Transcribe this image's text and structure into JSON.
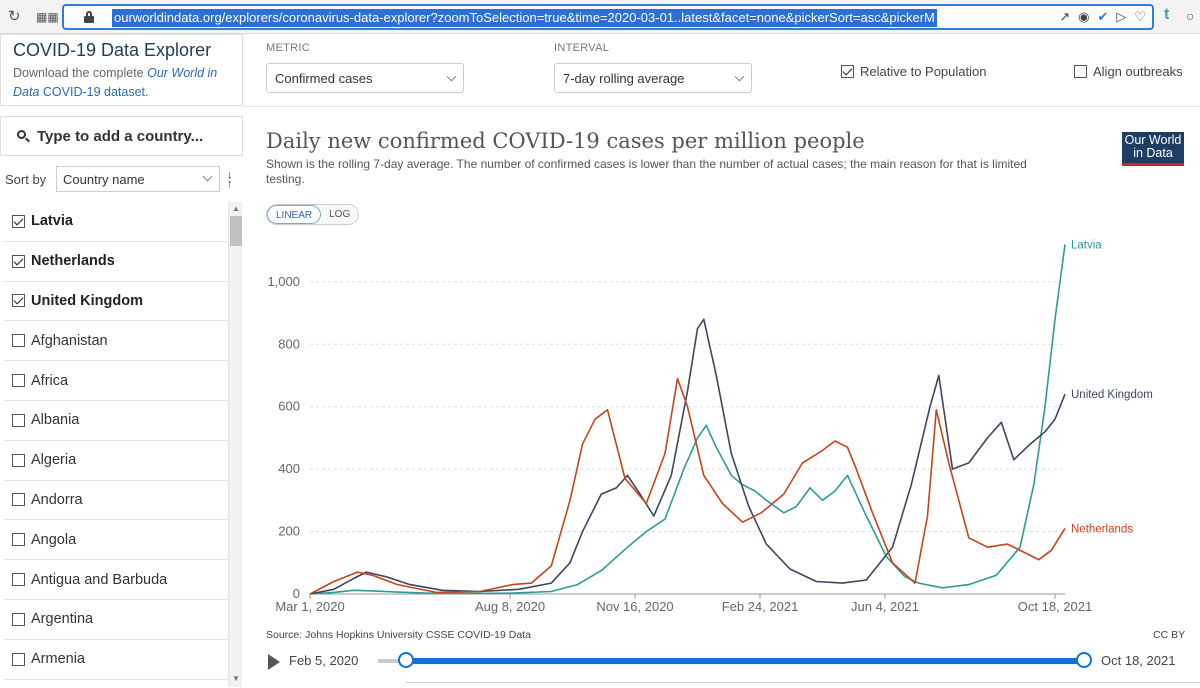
{
  "browser": {
    "url": "ourworldindata.org/explorers/coronavirus-data-explorer?zoomToSelection=true&time=2020-03-01..latest&facet=none&pickerSort=asc&pickerM"
  },
  "sidebar": {
    "title": "COVID-19 Data Explorer",
    "desc_prefix": "Download the complete ",
    "desc_italic": "Our World in Data",
    "desc_link": "COVID-19 dataset.",
    "search_placeholder": "Type to add a country...",
    "sort_label": "Sort by",
    "sort_value": "Country name",
    "countries": [
      {
        "name": "Latvia",
        "checked": true
      },
      {
        "name": "Netherlands",
        "checked": true
      },
      {
        "name": "United Kingdom",
        "checked": true
      },
      {
        "name": "Afghanistan",
        "checked": false
      },
      {
        "name": "Africa",
        "checked": false
      },
      {
        "name": "Albania",
        "checked": false
      },
      {
        "name": "Algeria",
        "checked": false
      },
      {
        "name": "Andorra",
        "checked": false
      },
      {
        "name": "Angola",
        "checked": false
      },
      {
        "name": "Antigua and Barbuda",
        "checked": false
      },
      {
        "name": "Argentina",
        "checked": false
      },
      {
        "name": "Armenia",
        "checked": false
      }
    ]
  },
  "controls": {
    "metric_label": "METRIC",
    "metric_value": "Confirmed cases",
    "interval_label": "INTERVAL",
    "interval_value": "7-day rolling average",
    "relative_label": "Relative to Population",
    "relative_checked": true,
    "align_label": "Align outbreaks",
    "align_checked": false
  },
  "chart": {
    "title": "Daily new confirmed COVID-19 cases per million people",
    "subtitle": "Shown is the rolling 7-day average. The number of confirmed cases is lower than the number of actual cases; the main reason for that is limited testing.",
    "logo_line1": "Our World",
    "logo_line2": "in Data",
    "scale_linear": "LINEAR",
    "scale_log": "LOG",
    "source": "Source: Johns Hopkins University CSSE COVID-19 Data",
    "license": "CC BY"
  },
  "timeline": {
    "start": "Feb 5, 2020",
    "end": "Oct 18, 2021",
    "selection_start_fraction": 0.04,
    "selection_end_fraction": 1.0
  },
  "chart_data": {
    "type": "line",
    "title": "Daily new confirmed COVID-19 cases per million people",
    "xlabel": "",
    "ylabel": "",
    "x_range": [
      "2020-03-01",
      "2021-10-26"
    ],
    "ylim": [
      0,
      1150
    ],
    "y_ticks": [
      0,
      200,
      400,
      600,
      800,
      1000
    ],
    "y_tick_labels": [
      "0",
      "200",
      "400",
      "600",
      "800",
      "1,000"
    ],
    "x_ticks": [
      "2020-03-01",
      "2020-08-08",
      "2020-11-16",
      "2021-02-24",
      "2021-06-04",
      "2021-10-18"
    ],
    "x_tick_labels": [
      "Mar 1, 2020",
      "Aug 8, 2020",
      "Nov 16, 2020",
      "Feb 24, 2021",
      "Jun 4, 2021",
      "Oct 18, 2021"
    ],
    "grid": true,
    "series": [
      {
        "name": "Latvia",
        "color": "#2e9c96",
        "points": [
          [
            "2020-03-01",
            0
          ],
          [
            "2020-03-20",
            5
          ],
          [
            "2020-04-05",
            12
          ],
          [
            "2020-04-20",
            10
          ],
          [
            "2020-05-10",
            6
          ],
          [
            "2020-06-10",
            2
          ],
          [
            "2020-07-10",
            2
          ],
          [
            "2020-08-10",
            3
          ],
          [
            "2020-09-10",
            8
          ],
          [
            "2020-10-01",
            30
          ],
          [
            "2020-10-20",
            75
          ],
          [
            "2020-11-10",
            150
          ],
          [
            "2020-11-25",
            200
          ],
          [
            "2020-12-10",
            240
          ],
          [
            "2020-12-25",
            400
          ],
          [
            "2021-01-05",
            500
          ],
          [
            "2021-01-12",
            540
          ],
          [
            "2021-01-20",
            470
          ],
          [
            "2021-02-01",
            380
          ],
          [
            "2021-02-10",
            350
          ],
          [
            "2021-02-20",
            330
          ],
          [
            "2021-03-01",
            300
          ],
          [
            "2021-03-15",
            260
          ],
          [
            "2021-03-25",
            280
          ],
          [
            "2021-04-05",
            340
          ],
          [
            "2021-04-15",
            300
          ],
          [
            "2021-04-25",
            330
          ],
          [
            "2021-05-05",
            380
          ],
          [
            "2021-05-20",
            250
          ],
          [
            "2021-06-05",
            120
          ],
          [
            "2021-06-20",
            55
          ],
          [
            "2021-07-01",
            35
          ],
          [
            "2021-07-20",
            20
          ],
          [
            "2021-08-10",
            30
          ],
          [
            "2021-09-01",
            60
          ],
          [
            "2021-09-20",
            150
          ],
          [
            "2021-10-01",
            350
          ],
          [
            "2021-10-10",
            600
          ],
          [
            "2021-10-18",
            880
          ],
          [
            "2021-10-26",
            1120
          ]
        ]
      },
      {
        "name": "United Kingdom",
        "color": "#3d4561",
        "points": [
          [
            "2020-03-01",
            0
          ],
          [
            "2020-03-20",
            15
          ],
          [
            "2020-04-05",
            50
          ],
          [
            "2020-04-15",
            70
          ],
          [
            "2020-05-01",
            55
          ],
          [
            "2020-05-20",
            30
          ],
          [
            "2020-06-15",
            12
          ],
          [
            "2020-07-15",
            8
          ],
          [
            "2020-08-15",
            15
          ],
          [
            "2020-09-10",
            35
          ],
          [
            "2020-09-25",
            100
          ],
          [
            "2020-10-05",
            200
          ],
          [
            "2020-10-20",
            320
          ],
          [
            "2020-11-01",
            340
          ],
          [
            "2020-11-10",
            380
          ],
          [
            "2020-11-20",
            320
          ],
          [
            "2020-12-01",
            250
          ],
          [
            "2020-12-15",
            380
          ],
          [
            "2020-12-28",
            650
          ],
          [
            "2021-01-05",
            850
          ],
          [
            "2021-01-10",
            880
          ],
          [
            "2021-01-20",
            700
          ],
          [
            "2021-02-01",
            450
          ],
          [
            "2021-02-15",
            280
          ],
          [
            "2021-03-01",
            160
          ],
          [
            "2021-03-20",
            80
          ],
          [
            "2021-04-10",
            40
          ],
          [
            "2021-05-01",
            35
          ],
          [
            "2021-05-20",
            45
          ],
          [
            "2021-06-10",
            150
          ],
          [
            "2021-06-25",
            350
          ],
          [
            "2021-07-10",
            600
          ],
          [
            "2021-07-17",
            700
          ],
          [
            "2021-07-28",
            400
          ],
          [
            "2021-08-10",
            420
          ],
          [
            "2021-08-25",
            500
          ],
          [
            "2021-09-05",
            550
          ],
          [
            "2021-09-15",
            430
          ],
          [
            "2021-09-28",
            480
          ],
          [
            "2021-10-10",
            520
          ],
          [
            "2021-10-18",
            560
          ],
          [
            "2021-10-26",
            640
          ]
        ]
      },
      {
        "name": "Netherlands",
        "color": "#c4451c",
        "points": [
          [
            "2020-03-01",
            0
          ],
          [
            "2020-03-20",
            40
          ],
          [
            "2020-04-08",
            70
          ],
          [
            "2020-04-20",
            60
          ],
          [
            "2020-05-10",
            30
          ],
          [
            "2020-06-10",
            5
          ],
          [
            "2020-07-15",
            8
          ],
          [
            "2020-08-10",
            30
          ],
          [
            "2020-08-25",
            35
          ],
          [
            "2020-09-10",
            90
          ],
          [
            "2020-09-25",
            300
          ],
          [
            "2020-10-05",
            480
          ],
          [
            "2020-10-15",
            560
          ],
          [
            "2020-10-25",
            590
          ],
          [
            "2020-11-08",
            370
          ],
          [
            "2020-11-25",
            290
          ],
          [
            "2020-12-10",
            450
          ],
          [
            "2020-12-20",
            690
          ],
          [
            "2020-12-28",
            600
          ],
          [
            "2021-01-10",
            380
          ],
          [
            "2021-01-25",
            290
          ],
          [
            "2021-02-10",
            230
          ],
          [
            "2021-02-25",
            260
          ],
          [
            "2021-03-15",
            320
          ],
          [
            "2021-03-30",
            420
          ],
          [
            "2021-04-15",
            460
          ],
          [
            "2021-04-25",
            490
          ],
          [
            "2021-05-05",
            470
          ],
          [
            "2021-05-12",
            400
          ],
          [
            "2021-05-25",
            260
          ],
          [
            "2021-06-10",
            100
          ],
          [
            "2021-06-28",
            35
          ],
          [
            "2021-07-08",
            250
          ],
          [
            "2021-07-15",
            590
          ],
          [
            "2021-07-25",
            420
          ],
          [
            "2021-08-10",
            180
          ],
          [
            "2021-08-25",
            150
          ],
          [
            "2021-09-10",
            160
          ],
          [
            "2021-09-25",
            130
          ],
          [
            "2021-10-05",
            110
          ],
          [
            "2021-10-15",
            140
          ],
          [
            "2021-10-26",
            210
          ]
        ]
      }
    ]
  }
}
